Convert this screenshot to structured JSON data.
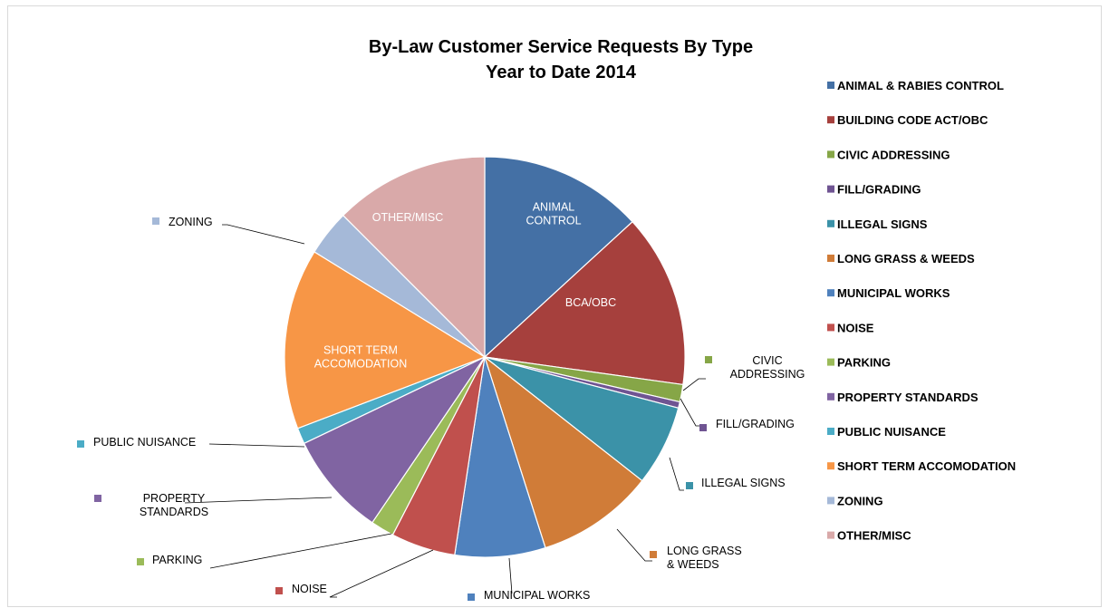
{
  "chart_data": {
    "type": "pie",
    "title": "By-Law Customer Service Requests By Type",
    "subtitle": "Year to Date 2014",
    "legend_position": "right",
    "slices": [
      {
        "legend": "ANIMAL & RABIES CONTROL",
        "label": "ANIMAL CONTROL",
        "value": 13.2,
        "color": "#4470A5"
      },
      {
        "legend": "BUILDING CODE ACT/OBC",
        "label": "BCA/OBC",
        "value": 14.0,
        "color": "#A6403D"
      },
      {
        "legend": "CIVIC ADDRESSING",
        "label": "CIVIC ADDRESSING",
        "value": 1.4,
        "color": "#86A647"
      },
      {
        "legend": "FILL/GRADING",
        "label": "FILL/GRADING",
        "value": 0.5,
        "color": "#6F5492"
      },
      {
        "legend": "ILLEGAL SIGNS",
        "label": "ILLEGAL SIGNS",
        "value": 6.5,
        "color": "#3B92A8"
      },
      {
        "legend": "LONG GRASS & WEEDS",
        "label": "LONG GRASS & WEEDS",
        "value": 9.5,
        "color": "#D07C38"
      },
      {
        "legend": "MUNICIPAL WORKS",
        "label": "MUNICIPAL WORKS",
        "value": 7.3,
        "color": "#4F81BD"
      },
      {
        "legend": "NOISE",
        "label": "NOISE",
        "value": 5.2,
        "color": "#C0504D"
      },
      {
        "legend": "PARKING",
        "label": "PARKING",
        "value": 1.9,
        "color": "#9BBB59"
      },
      {
        "legend": "PROPERTY STANDARDS",
        "label": "PROPERTY STANDARDS",
        "value": 8.4,
        "color": "#8064A2"
      },
      {
        "legend": "PUBLIC NUISANCE",
        "label": "PUBLIC NUISANCE",
        "value": 1.3,
        "color": "#4BACC6"
      },
      {
        "legend": "SHORT TERM ACCOMODATION",
        "label": "SHORT TERM ACCOMODATION",
        "value": 14.6,
        "color": "#F79646"
      },
      {
        "legend": "ZONING",
        "label": "ZONING",
        "value": 3.7,
        "color": "#A5B9D8"
      },
      {
        "legend": "OTHER/MISC",
        "label": "OTHER/MISC",
        "value": 12.5,
        "color": "#D9A9A9"
      }
    ]
  }
}
